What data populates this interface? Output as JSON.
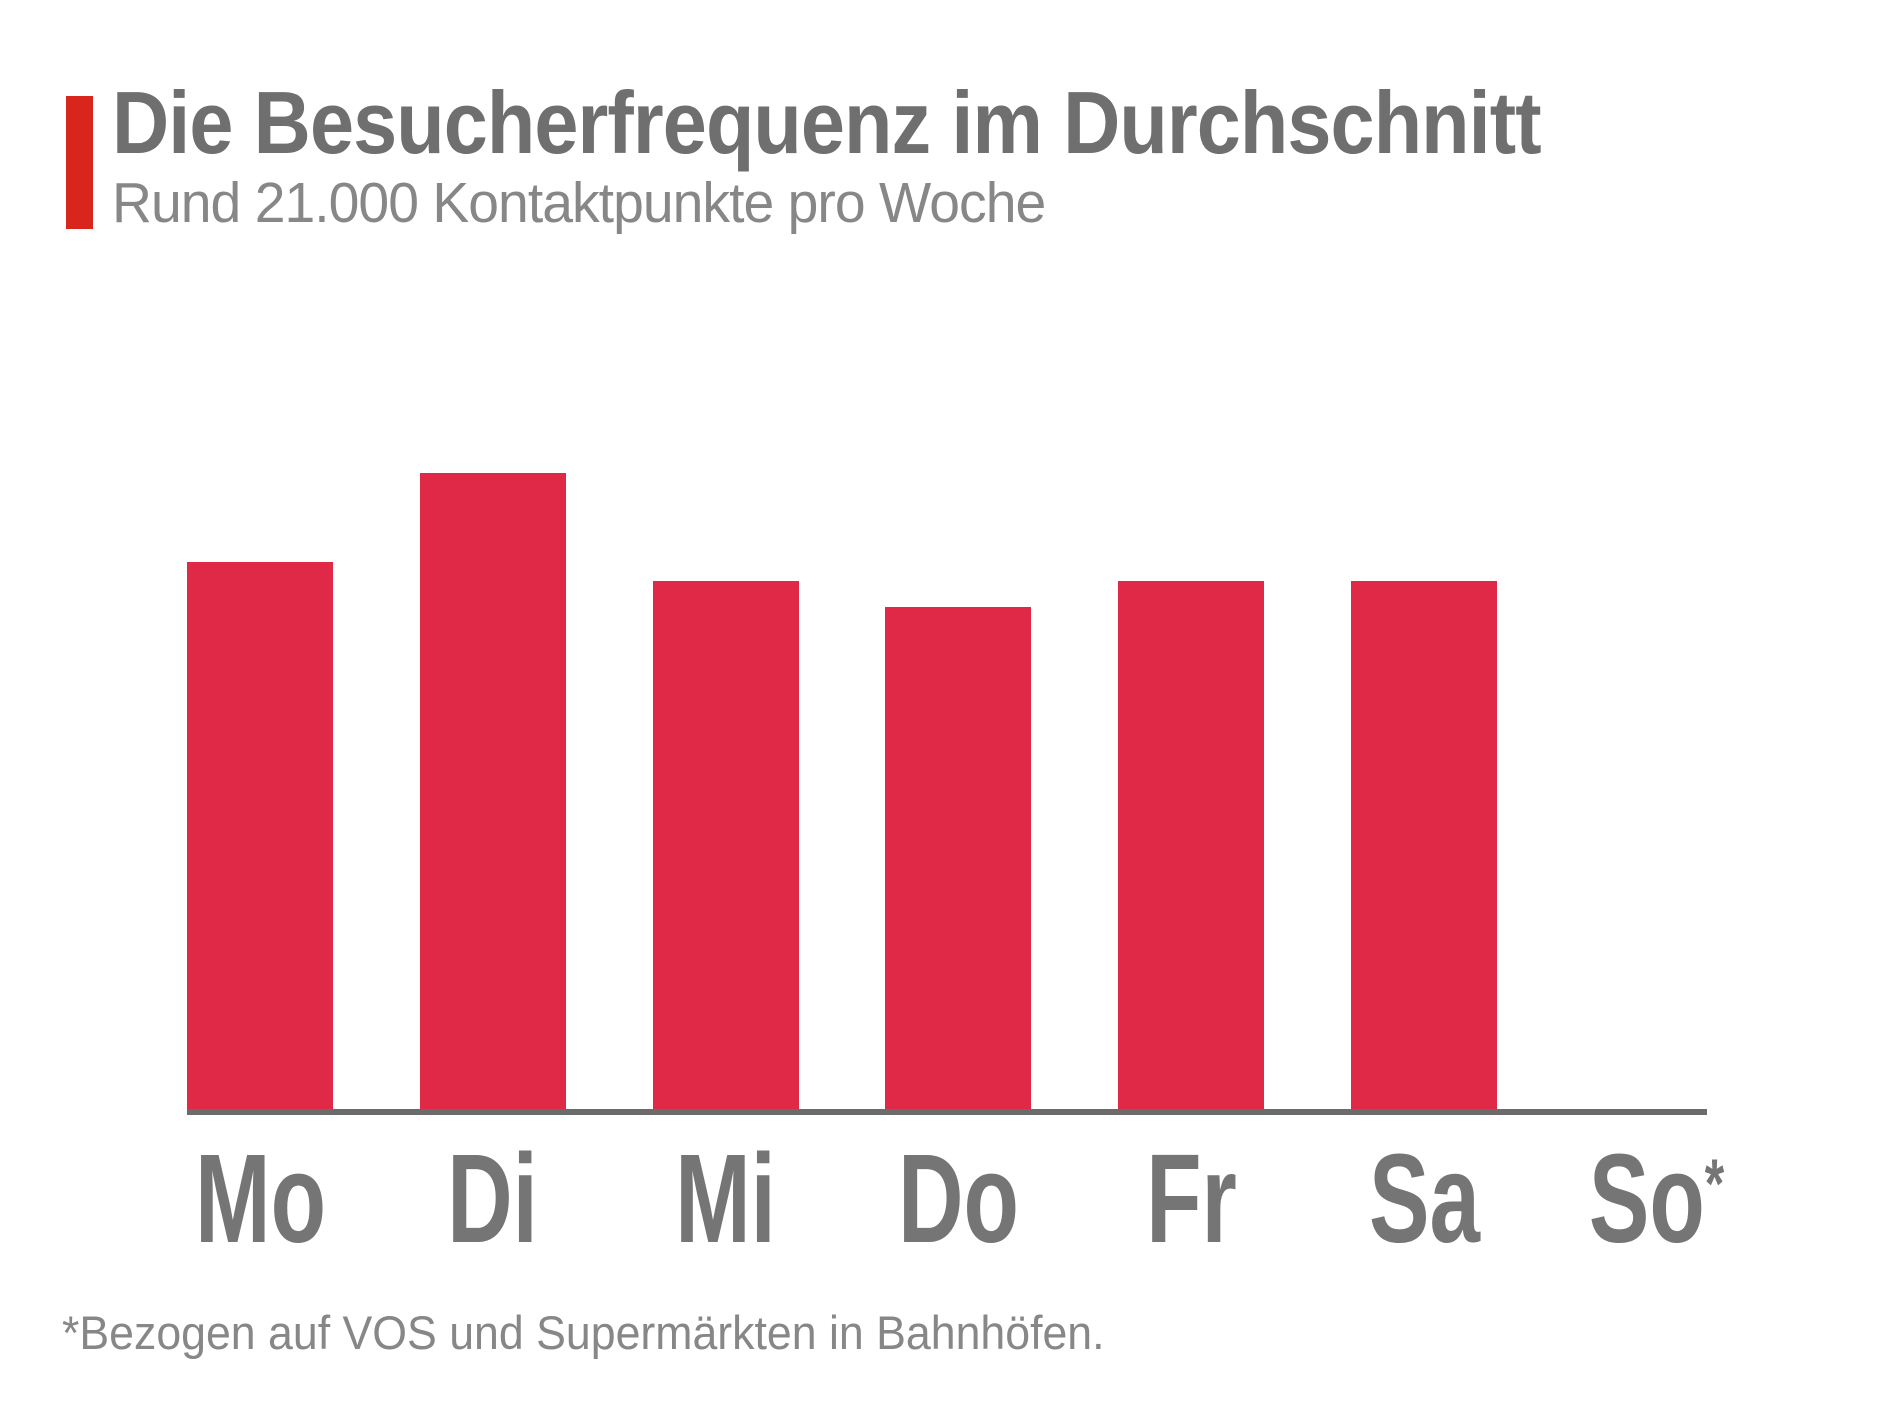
{
  "header": {
    "title": "Die Besucherfrequenz im Durchschnitt",
    "subtitle": "Rund 21.000 Kontaktpunkte pro Woche"
  },
  "footnote": "*Bezogen auf VOS und Supermärkten in Bahnhöfen.",
  "colors": {
    "accent_red": "#d9261c",
    "bar_red": "#e02946",
    "title_gray": "#6f6f6f",
    "subtitle_gray": "#878787",
    "label_gray": "#757575",
    "axis_gray": "#6b6b6b",
    "footnote_gray": "#878787"
  },
  "chart_data": {
    "type": "bar",
    "title": "Die Besucherfrequenz im Durchschnitt",
    "subtitle": "Rund 21.000 Kontaktpunkte pro Woche",
    "categories": [
      "Mo",
      "Di",
      "Mi",
      "Do",
      "Fr",
      "Sa",
      "So*"
    ],
    "values": [
      86,
      100,
      83,
      79,
      83,
      83,
      0
    ],
    "value_meaning": "relative visitor frequency, % of maximum (Dienstag = 100)",
    "xlabel": "",
    "ylabel": "",
    "ylim": [
      0,
      100
    ],
    "grid": false,
    "legend": false,
    "y_axis_shown": false,
    "bar_color": "#e02946",
    "annotation": "So (Sunday) column is empty; asterisk on So refers to footnote"
  },
  "days": [
    {
      "label": "Mo",
      "sup": "",
      "value": 86
    },
    {
      "label": "Di",
      "sup": "",
      "value": 100
    },
    {
      "label": "Mi",
      "sup": "",
      "value": 83
    },
    {
      "label": "Do",
      "sup": "",
      "value": 79
    },
    {
      "label": "Fr",
      "sup": "",
      "value": 83
    },
    {
      "label": "Sa",
      "sup": "",
      "value": 83
    },
    {
      "label": "So",
      "sup": "*",
      "value": 0
    }
  ]
}
